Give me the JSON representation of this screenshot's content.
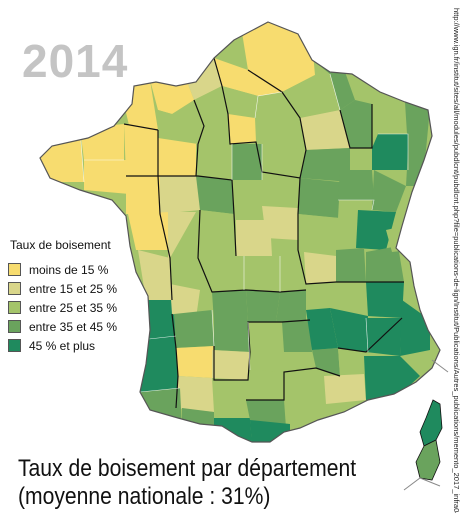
{
  "year": "2014",
  "legend": {
    "title": "Taux de boisement",
    "items": [
      {
        "label": "moins de 15 %",
        "color": "#f7dc6f"
      },
      {
        "label": "entre 15 et 25 %",
        "color": "#d9d68a"
      },
      {
        "label": "entre 25 et 35 %",
        "color": "#a4c46a"
      },
      {
        "label": "entre 35 et 45 %",
        "color": "#6aa35d"
      },
      {
        "label": "45 % et plus",
        "color": "#1f8a5e"
      }
    ]
  },
  "caption": {
    "line1": "Taux de boisement par département",
    "line2": "(moyenne nationale : 31%)"
  },
  "source_url": "http://www.ign.fr/institut/sites/all/modules/pubdlcnt/pubdlcnt.php?file=publications-de-lign/Institut/Publications/Autres_publications/memento_2017_infra04c-0584",
  "colors": {
    "border": "#111111",
    "coast": "#555555"
  }
}
